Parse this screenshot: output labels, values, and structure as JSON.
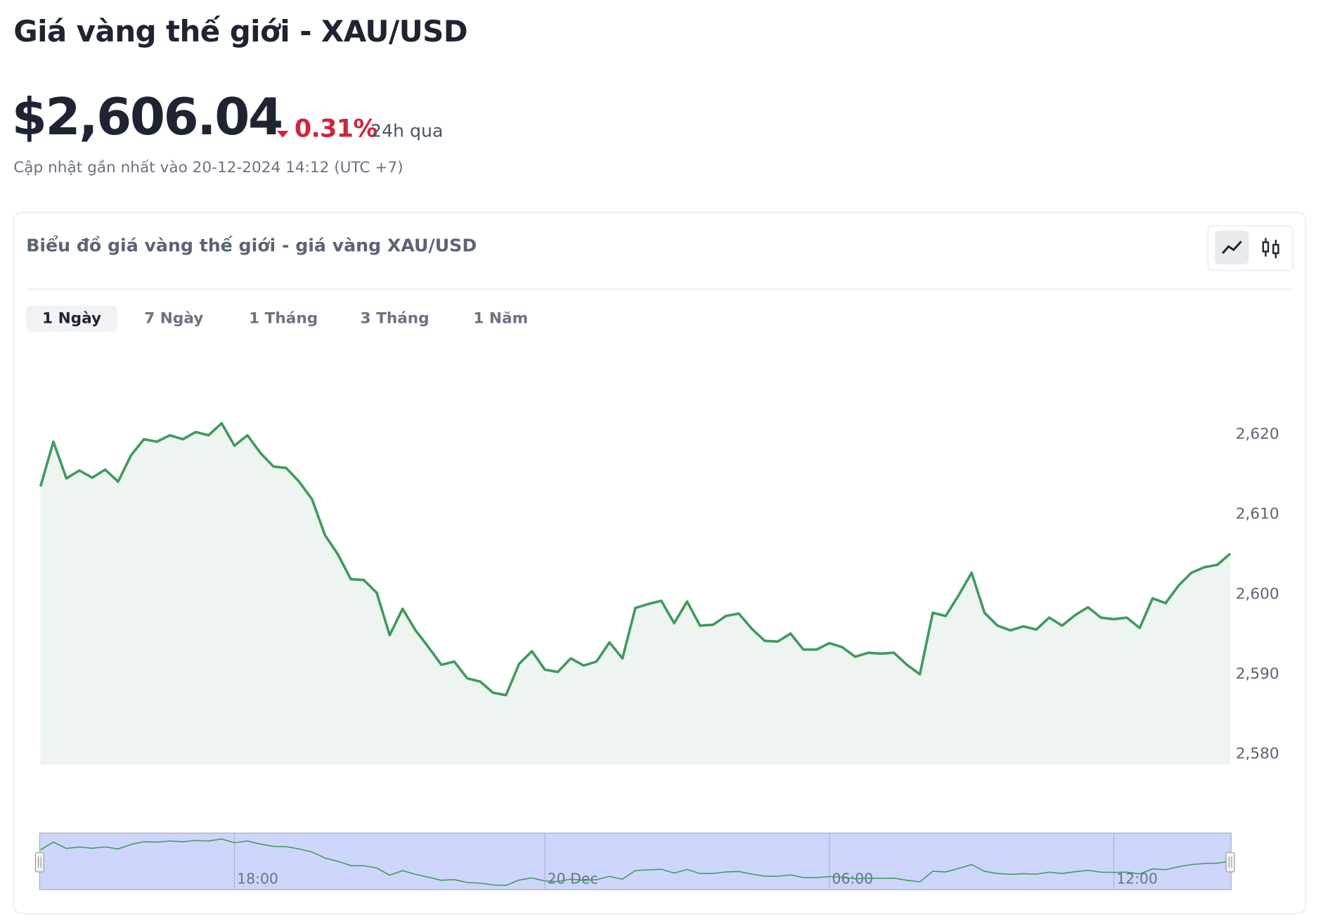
{
  "header": {
    "title": "Giá vàng thế giới - XAU/USD",
    "price": "$2,606.04",
    "change": "0.31%",
    "period": "24h qua",
    "updated": "Cập nhật gần nhất vào 20-12-2024 14:12 (UTC +7)"
  },
  "panel": {
    "title": "Biểu đồ giá vàng thế giới - giá vàng XAU/USD",
    "tabs": [
      "1 Ngày",
      "7 Ngày",
      "1 Tháng",
      "3 Tháng",
      "1 Năm"
    ]
  },
  "chart_data": {
    "type": "area",
    "color": "#3f9a5c",
    "values": [
      2613.5,
      2619.1,
      2614.5,
      2615.5,
      2614.6,
      2615.6,
      2614.1,
      2617.4,
      2619.4,
      2619.1,
      2619.9,
      2619.4,
      2620.3,
      2619.9,
      2621.4,
      2618.6,
      2619.9,
      2617.7,
      2616.0,
      2615.8,
      2614.1,
      2611.9,
      2607.4,
      2605.0,
      2601.9,
      2601.8,
      2600.2,
      2594.9,
      2598.2,
      2595.5,
      2593.4,
      2591.2,
      2591.6,
      2589.5,
      2589.1,
      2587.7,
      2587.4,
      2591.3,
      2592.9,
      2590.6,
      2590.3,
      2592.0,
      2591.1,
      2591.6,
      2594.0,
      2592.0,
      2598.3,
      2598.8,
      2599.2,
      2596.4,
      2599.1,
      2596.1,
      2596.2,
      2597.3,
      2597.6,
      2595.7,
      2594.2,
      2594.1,
      2595.1,
      2593.1,
      2593.1,
      2593.9,
      2593.4,
      2592.2,
      2592.7,
      2592.6,
      2592.7,
      2591.2,
      2590.0,
      2597.7,
      2597.3,
      2599.9,
      2602.7,
      2597.7,
      2596.1,
      2595.5,
      2596.0,
      2595.6,
      2597.1,
      2596.1,
      2597.4,
      2598.4,
      2597.1,
      2596.9,
      2597.1,
      2595.8,
      2599.5,
      2598.9,
      2601.1,
      2602.7,
      2603.4,
      2603.7,
      2605.1
    ],
    "ylim": [
      2578.7,
      2630
    ],
    "yticks": [
      {
        "value": 2620,
        "label": "2,620"
      },
      {
        "value": 2610,
        "label": "2,610"
      },
      {
        "value": 2600,
        "label": "2,600"
      },
      {
        "value": 2590,
        "label": "2,590"
      },
      {
        "value": 2580,
        "label": "2,580"
      }
    ],
    "navigator_xticks": [
      {
        "value": 15,
        "label": "18:00"
      },
      {
        "value": 39,
        "label": "20 Dec"
      },
      {
        "value": 61,
        "label": "06:00"
      },
      {
        "value": 83,
        "label": "12:00"
      }
    ]
  }
}
